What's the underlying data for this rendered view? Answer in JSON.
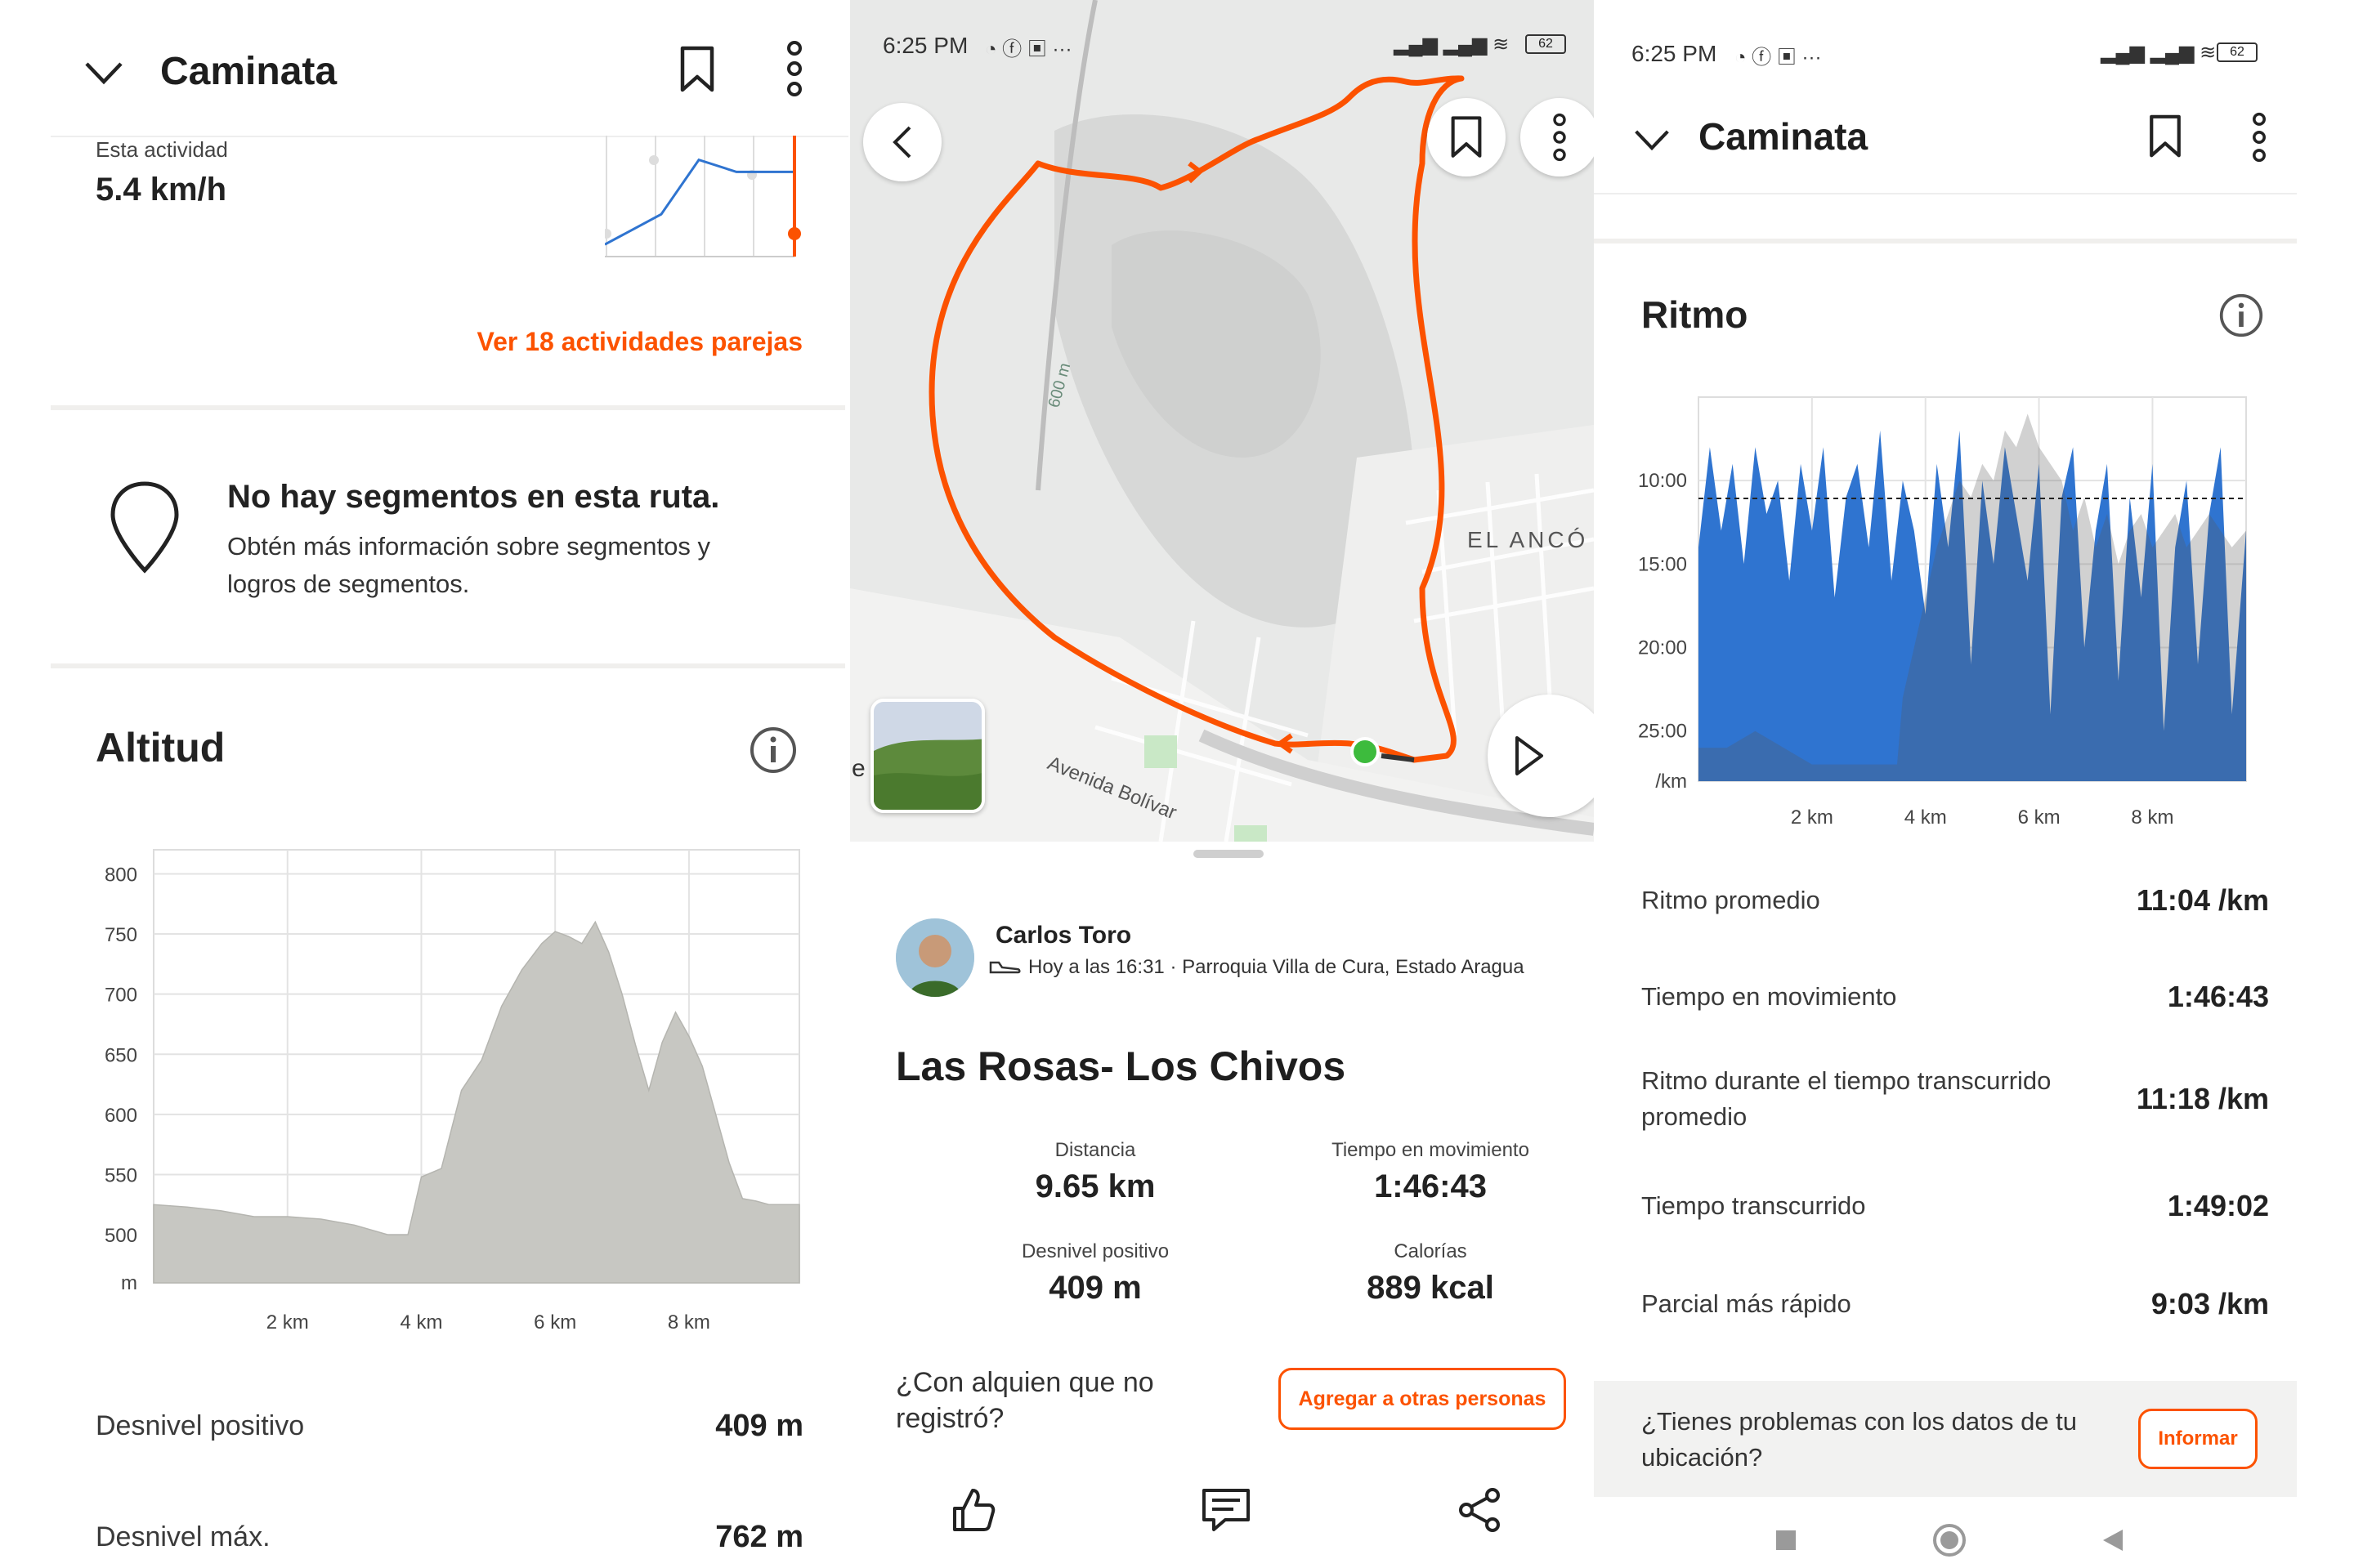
{
  "colors": {
    "brand": "#fc5200",
    "pace_blue": "#2f74d0",
    "elevation_gray": "#c7c7c2",
    "start_green": "#3dbb3d"
  },
  "left": {
    "header_title": "Caminata",
    "this_activity_label": "Esta actividad",
    "this_activity_value": "5.4 km/h",
    "matched_link": "Ver 18 actividades parejas",
    "segments_title": "No hay segmentos en esta ruta.",
    "segments_desc_1": "Obtén más información sobre segmentos y",
    "segments_desc_2": "logros de segmentos.",
    "altitude_title": "Altitud",
    "stats": [
      {
        "label": "Desnivel positivo",
        "value": "409 m"
      },
      {
        "label": "Desnivel máx.",
        "value": "762 m"
      }
    ]
  },
  "middle": {
    "status_time": "6:25 PM",
    "map_label_area": "EL ANCÓ",
    "map_label_street": "Avenida Bolívar",
    "map_label_contour": "600 m",
    "map_label_edge": "e",
    "athlete_name": "Carlos Toro",
    "activity_meta": "Hoy a las 16:31 · Parroquia Villa de Cura, Estado Aragua",
    "activity_title": "Las Rosas- Los Chivos",
    "stats": [
      {
        "label": "Distancia",
        "value": "9.65 km"
      },
      {
        "label": "Tiempo en movimiento",
        "value": "1:46:43"
      },
      {
        "label": "Desnivel positivo",
        "value": "409 m"
      },
      {
        "label": "Calorías",
        "value": "889 kcal"
      }
    ],
    "with_someone_1": "¿Con alquien que no",
    "with_someone_2": "registró?",
    "add_others_button": "Agregar a otras personas",
    "battery": "62"
  },
  "right": {
    "status_time": "6:25 PM",
    "battery": "62",
    "header_title": "Caminata",
    "pace_title": "Ritmo",
    "stats": [
      {
        "label": "Ritmo promedio",
        "value": "11:04 /km"
      },
      {
        "label": "Tiempo en movimiento",
        "value": "1:46:43"
      },
      {
        "label": "Ritmo durante el tiempo transcurrido promedio",
        "label_1": "Ritmo durante el tiempo transcurrido",
        "label_2": "promedio",
        "value": "11:18 /km"
      },
      {
        "label": "Tiempo transcurrido",
        "value": "1:49:02"
      },
      {
        "label": "Parcial más rápido",
        "value": "9:03 /km"
      }
    ],
    "location_issue_1": "¿Tienes problemas con los datos de tu",
    "location_issue_2": "ubicación?",
    "report_button": "Informar"
  },
  "chart_data": [
    {
      "type": "line",
      "ylim": [
        0,
        1
      ],
      "xlim": [
        0,
        1
      ],
      "y_tick_labels": [
        "",
        ""
      ],
      "x_tick_labels": [],
      "x": [
        0,
        0.3,
        0.5,
        0.7,
        1
      ],
      "y": [
        0.1,
        0.35,
        0.8,
        0.7,
        0.7
      ]
    },
    {
      "type": "area",
      "xlabel": "",
      "ylabel": "m",
      "ylim": [
        460,
        820
      ],
      "xlim": [
        0,
        9.65
      ],
      "y_ticks": [
        800,
        750,
        700,
        650,
        600,
        550,
        500
      ],
      "x_ticks": [
        2,
        4,
        6,
        8
      ],
      "x_tick_labels": [
        "2 km",
        "4 km",
        "6 km",
        "8 km"
      ],
      "x": [
        0,
        0.5,
        1,
        1.5,
        2,
        2.5,
        3,
        3.5,
        3.8,
        4,
        4.3,
        4.6,
        4.9,
        5.2,
        5.5,
        5.8,
        6,
        6.2,
        6.4,
        6.6,
        6.8,
        7.0,
        7.2,
        7.4,
        7.6,
        7.8,
        8.0,
        8.2,
        8.4,
        8.6,
        8.8,
        9.0,
        9.2,
        9.4,
        9.65
      ],
      "y": [
        525,
        523,
        520,
        515,
        515,
        513,
        508,
        500,
        500,
        548,
        555,
        620,
        645,
        690,
        720,
        742,
        752,
        748,
        742,
        760,
        735,
        700,
        658,
        620,
        660,
        685,
        665,
        640,
        600,
        560,
        530,
        528,
        525,
        525,
        525
      ]
    },
    {
      "type": "area",
      "xlabel": "",
      "ylabel": "/km",
      "ylim": [
        28,
        5
      ],
      "xlim": [
        0,
        9.65
      ],
      "y_ticks": [
        "10:00",
        "15:00",
        "20:00",
        "25:00"
      ],
      "y_tick_values": [
        10,
        15,
        20,
        25
      ],
      "x_ticks": [
        2,
        4,
        6,
        8
      ],
      "x_tick_labels": [
        "2 km",
        "4 km",
        "6 km",
        "8 km"
      ],
      "average_line": 11.07,
      "series": [
        {
          "x": [
            0,
            0.2,
            0.4,
            0.6,
            0.8,
            1.0,
            1.2,
            1.4,
            1.6,
            1.8,
            2.0,
            2.2,
            2.4,
            2.6,
            2.8,
            3.0,
            3.2,
            3.4,
            3.6,
            3.8,
            4.0,
            4.2,
            4.4,
            4.6,
            4.8,
            5.0,
            5.2,
            5.4,
            5.6,
            5.8,
            6.0,
            6.2,
            6.4,
            6.6,
            6.8,
            7.0,
            7.2,
            7.4,
            7.6,
            7.8,
            8.0,
            8.2,
            8.4,
            8.6,
            8.8,
            9.0,
            9.2,
            9.4,
            9.65
          ],
          "y": [
            14,
            8,
            13,
            9,
            15,
            8,
            12,
            10,
            16,
            9,
            13,
            8,
            17,
            11,
            9,
            14,
            7,
            16,
            10,
            13,
            18,
            9,
            14,
            7,
            21,
            10,
            15,
            8,
            12,
            16,
            9,
            24,
            11,
            8,
            20,
            13,
            9,
            22,
            11,
            17,
            9,
            25,
            14,
            10,
            21,
            12,
            8,
            24,
            13
          ]
        },
        {
          "x": [
            0,
            0.5,
            1.0,
            1.5,
            2.0,
            2.5,
            3.0,
            3.5,
            3.6,
            3.8,
            4.0,
            4.2,
            4.4,
            4.6,
            4.8,
            5.0,
            5.2,
            5.4,
            5.6,
            5.8,
            6.0,
            6.2,
            6.4,
            6.6,
            6.8,
            7.0,
            7.2,
            7.4,
            7.6,
            7.8,
            8.0,
            8.2,
            8.4,
            8.6,
            8.8,
            9.0,
            9.2,
            9.4,
            9.65
          ],
          "y": [
            26,
            26,
            25,
            26,
            27,
            27,
            27,
            27,
            23,
            20,
            17,
            14,
            12,
            10,
            11,
            9,
            10,
            7,
            8,
            6,
            8,
            9,
            10,
            13,
            11,
            14,
            12,
            15,
            13,
            12,
            14,
            13,
            12,
            14,
            13,
            12,
            13,
            14,
            13
          ]
        }
      ]
    }
  ]
}
